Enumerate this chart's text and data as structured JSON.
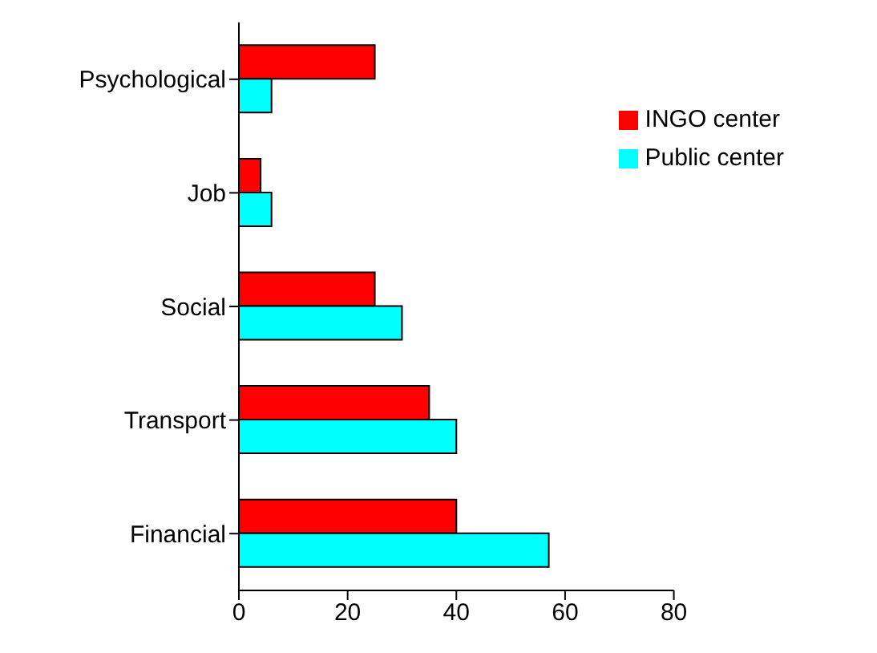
{
  "chart_data": {
    "type": "bar",
    "orientation": "horizontal",
    "categories": [
      "Psychological",
      "Job",
      "Social",
      "Transport",
      "Financial"
    ],
    "series": [
      {
        "name": "INGO center",
        "color": "#ff0000",
        "values": [
          25,
          4,
          25,
          35,
          40
        ]
      },
      {
        "name": "Public center",
        "color": "#00ffff",
        "values": [
          6,
          6,
          30,
          40,
          57
        ]
      }
    ],
    "xlim": [
      0,
      80
    ],
    "xticks": [
      0,
      20,
      40,
      60,
      80
    ],
    "grid": false,
    "legend": "top right"
  }
}
